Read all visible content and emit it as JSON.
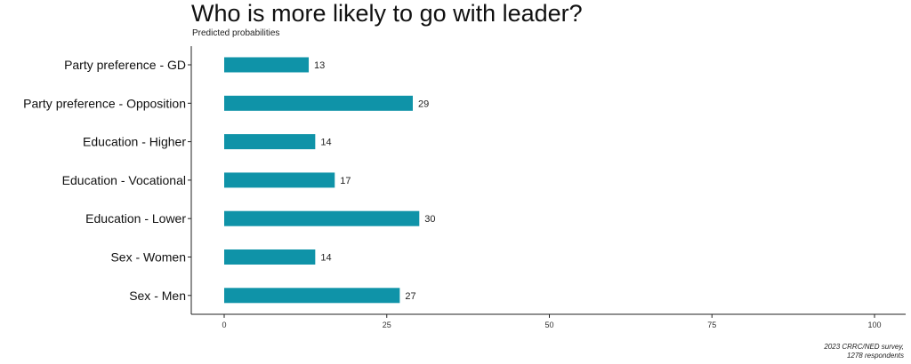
{
  "chart_data": {
    "type": "bar",
    "orientation": "horizontal",
    "title": "Who is more likely to go with leader?",
    "subtitle": "Predicted probabilities",
    "categories": [
      "Party preference  -  GD",
      "Party preference  -  Opposition",
      "Education  -  Higher",
      "Education  -  Vocational",
      "Education  -  Lower",
      "Sex  -  Women",
      "Sex  -  Men"
    ],
    "values": [
      13,
      29,
      14,
      17,
      30,
      14,
      27
    ],
    "value_labels": [
      "13",
      "29",
      "14",
      "17",
      "30",
      "14",
      "27"
    ],
    "xlim": [
      0,
      100
    ],
    "x_ticks": [
      0,
      25,
      50,
      75,
      100
    ],
    "x_tick_labels": [
      "0",
      "25",
      "50",
      "75",
      "100"
    ],
    "grid": false,
    "bar_color": "#0f93a8",
    "caption": [
      "2023 CRRC/NED survey,",
      "1278 respondents"
    ]
  }
}
